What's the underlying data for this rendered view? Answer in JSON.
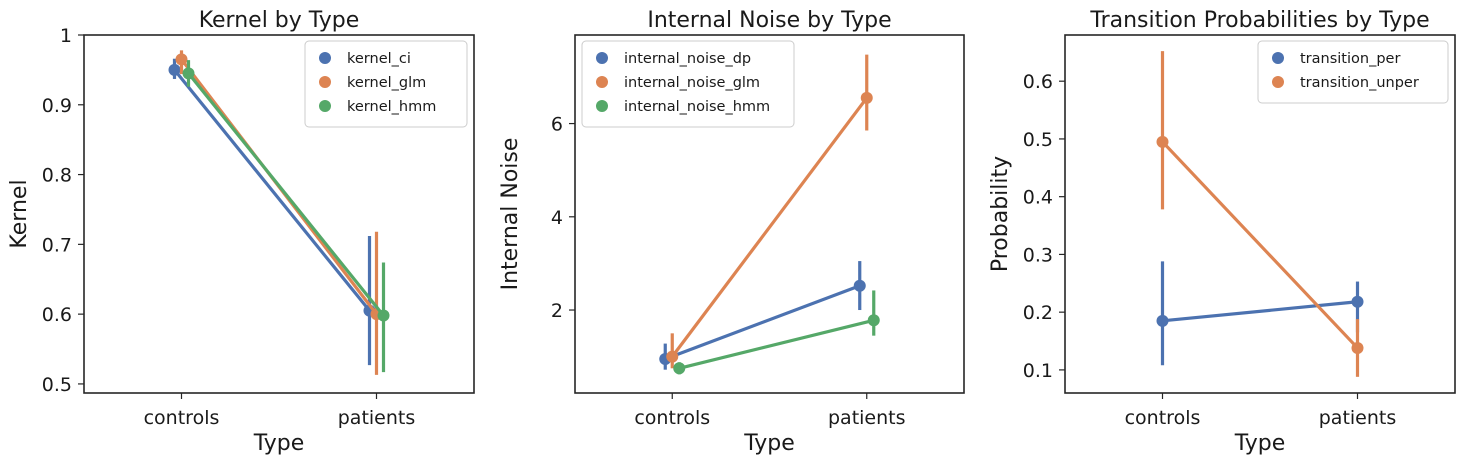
{
  "chart_data": [
    {
      "type": "point",
      "title": "Kernel by Type",
      "xlabel": "Type",
      "ylabel": "Kernel",
      "categories": [
        "controls",
        "patients"
      ],
      "ylim": [
        0.487,
        1.0
      ],
      "yticks": [
        0.5,
        0.6,
        0.7,
        0.8,
        0.9,
        1.0
      ],
      "legend_position": "top-right",
      "series": [
        {
          "name": "kernel_ci",
          "color": "#4c72b0",
          "values": [
            0.95,
            0.605
          ],
          "ci_low": [
            0.937,
            0.527
          ],
          "ci_high": [
            0.966,
            0.712
          ]
        },
        {
          "name": "kernel_glm",
          "color": "#dd8452",
          "values": [
            0.965,
            0.6
          ],
          "ci_low": [
            0.944,
            0.513
          ],
          "ci_high": [
            0.978,
            0.718
          ]
        },
        {
          "name": "kernel_hmm",
          "color": "#55a868",
          "values": [
            0.945,
            0.598
          ],
          "ci_low": [
            0.926,
            0.517
          ],
          "ci_high": [
            0.964,
            0.674
          ]
        }
      ]
    },
    {
      "type": "point",
      "title": "Internal Noise by Type",
      "xlabel": "Type",
      "ylabel": "Internal Noise",
      "categories": [
        "controls",
        "patients"
      ],
      "ylim": [
        0.22,
        7.9
      ],
      "yticks": [
        2,
        4,
        6
      ],
      "legend_position": "top-left",
      "series": [
        {
          "name": "internal_noise_dp",
          "color": "#4c72b0",
          "values": [
            0.95,
            2.52
          ],
          "ci_low": [
            0.72,
            2.0
          ],
          "ci_high": [
            1.28,
            3.05
          ]
        },
        {
          "name": "internal_noise_glm",
          "color": "#dd8452",
          "values": [
            1.0,
            6.55
          ],
          "ci_low": [
            0.75,
            5.85
          ],
          "ci_high": [
            1.5,
            7.48
          ]
        },
        {
          "name": "internal_noise_hmm",
          "color": "#55a868",
          "values": [
            0.75,
            1.78
          ],
          "ci_low": [
            0.62,
            1.45
          ],
          "ci_high": [
            0.88,
            2.42
          ]
        }
      ]
    },
    {
      "type": "point",
      "title": "Transition Probabilities by Type",
      "xlabel": "Type",
      "ylabel": "Probability",
      "categories": [
        "controls",
        "patients"
      ],
      "ylim": [
        0.06,
        0.68
      ],
      "yticks": [
        0.1,
        0.2,
        0.3,
        0.4,
        0.5,
        0.6
      ],
      "legend_position": "top-right",
      "series": [
        {
          "name": "transition_per",
          "color": "#4c72b0",
          "values": [
            0.185,
            0.218
          ],
          "ci_low": [
            0.108,
            0.165
          ],
          "ci_high": [
            0.288,
            0.253
          ]
        },
        {
          "name": "transition_unper",
          "color": "#dd8452",
          "values": [
            0.495,
            0.138
          ],
          "ci_low": [
            0.378,
            0.088
          ],
          "ci_high": [
            0.652,
            0.188
          ]
        }
      ]
    }
  ]
}
